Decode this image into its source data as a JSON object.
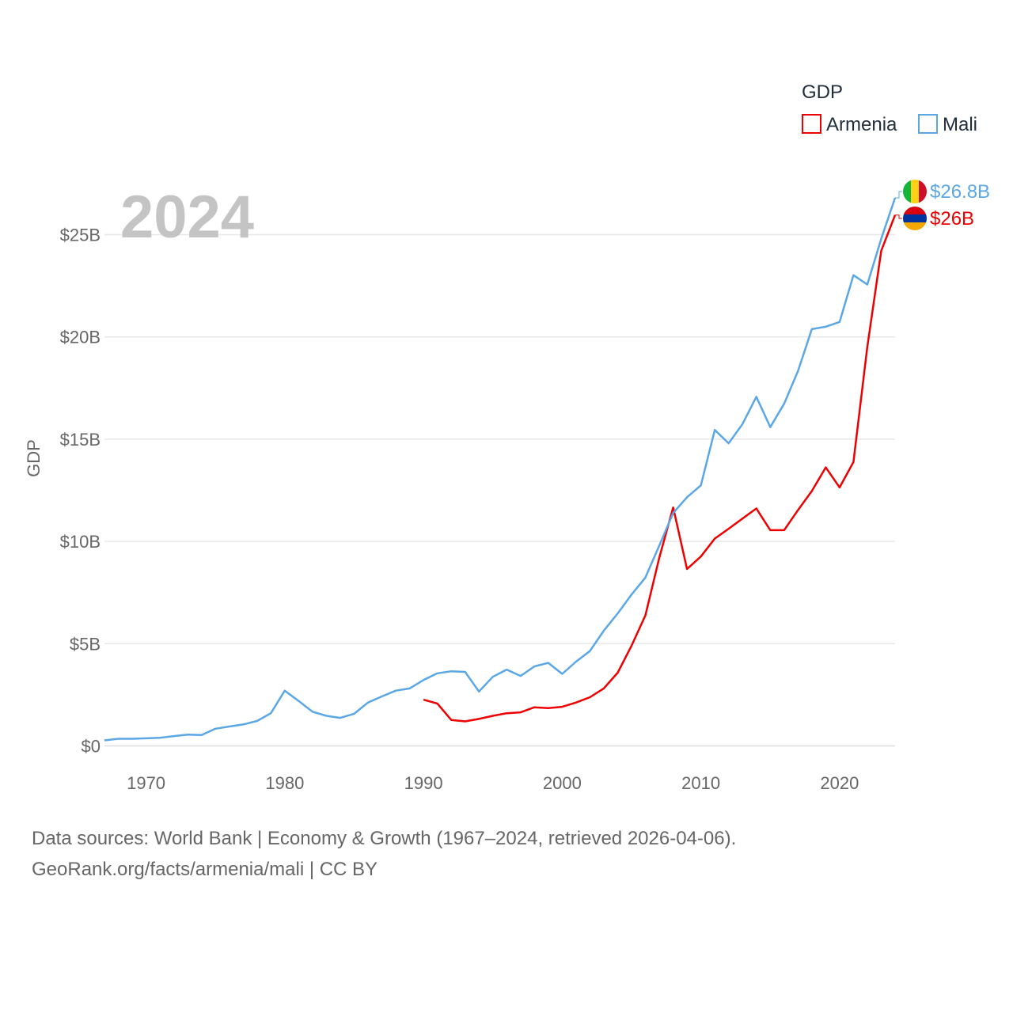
{
  "chart_data": {
    "type": "line",
    "title": "2024",
    "ylabel": "GDP",
    "xlabel": "",
    "xlim": [
      1967,
      2024
    ],
    "ylim": [
      0,
      25
    ],
    "y_ticks": [
      0,
      5,
      10,
      15,
      20,
      25
    ],
    "y_tick_labels": [
      "$0",
      "$5B",
      "$10B",
      "$15B",
      "$20B",
      "$25B"
    ],
    "x_ticks": [
      1970,
      1980,
      1990,
      2000,
      2010,
      2020
    ],
    "x_tick_labels": [
      "1970",
      "1980",
      "1990",
      "2000",
      "2010",
      "2020"
    ],
    "grid": true,
    "legend": {
      "title": "GDP",
      "placement": "top-right"
    },
    "series": [
      {
        "name": "Armenia",
        "color": "#ee0000",
        "flag": "armenia-flag-icon",
        "end_label": "$26B",
        "x": [
          1990,
          1991,
          1992,
          1993,
          1994,
          1995,
          1996,
          1997,
          1998,
          1999,
          2000,
          2001,
          2002,
          2003,
          2004,
          2005,
          2006,
          2007,
          2008,
          2009,
          2010,
          2011,
          2012,
          2013,
          2014,
          2015,
          2016,
          2017,
          2018,
          2019,
          2020,
          2021,
          2022,
          2023,
          2024
        ],
        "values": [
          2.26,
          2.07,
          1.27,
          1.2,
          1.32,
          1.47,
          1.6,
          1.64,
          1.89,
          1.85,
          1.91,
          2.12,
          2.38,
          2.81,
          3.58,
          4.9,
          6.38,
          9.21,
          11.66,
          8.65,
          9.26,
          10.14,
          10.62,
          11.12,
          11.61,
          10.55,
          10.55,
          11.53,
          12.46,
          13.62,
          12.64,
          13.88,
          19.51,
          24.21,
          25.96
        ]
      },
      {
        "name": "Mali",
        "color": "#5ba7e6",
        "flag": "mali-flag-icon",
        "end_label": "$26.8B",
        "x": [
          1967,
          1968,
          1969,
          1970,
          1971,
          1972,
          1973,
          1974,
          1975,
          1976,
          1977,
          1978,
          1979,
          1980,
          1981,
          1982,
          1983,
          1984,
          1985,
          1986,
          1987,
          1988,
          1989,
          1990,
          1991,
          1992,
          1993,
          1994,
          1995,
          1996,
          1997,
          1998,
          1999,
          2000,
          2001,
          2002,
          2003,
          2004,
          2005,
          2006,
          2007,
          2008,
          2009,
          2010,
          2011,
          2012,
          2013,
          2014,
          2015,
          2016,
          2017,
          2018,
          2019,
          2020,
          2021,
          2022,
          2023,
          2024
        ],
        "values": [
          0.27,
          0.35,
          0.35,
          0.37,
          0.4,
          0.48,
          0.55,
          0.53,
          0.84,
          0.95,
          1.05,
          1.22,
          1.6,
          2.7,
          2.2,
          1.67,
          1.47,
          1.37,
          1.57,
          2.12,
          2.42,
          2.7,
          2.81,
          3.22,
          3.55,
          3.65,
          3.62,
          2.66,
          3.38,
          3.73,
          3.42,
          3.89,
          4.06,
          3.52,
          4.12,
          4.64,
          5.63,
          6.48,
          7.4,
          8.23,
          9.8,
          11.39,
          12.16,
          12.74,
          15.45,
          14.8,
          15.74,
          17.07,
          15.59,
          16.73,
          18.33,
          20.38,
          20.5,
          20.73,
          23.02,
          22.56,
          24.8,
          26.8
        ]
      }
    ]
  },
  "source": {
    "line1": "Data sources: World Bank | Economy & Growth (1967–2024, retrieved 2026-04-06).",
    "line2": "GeoRank.org/facts/armenia/mali | CC BY"
  }
}
